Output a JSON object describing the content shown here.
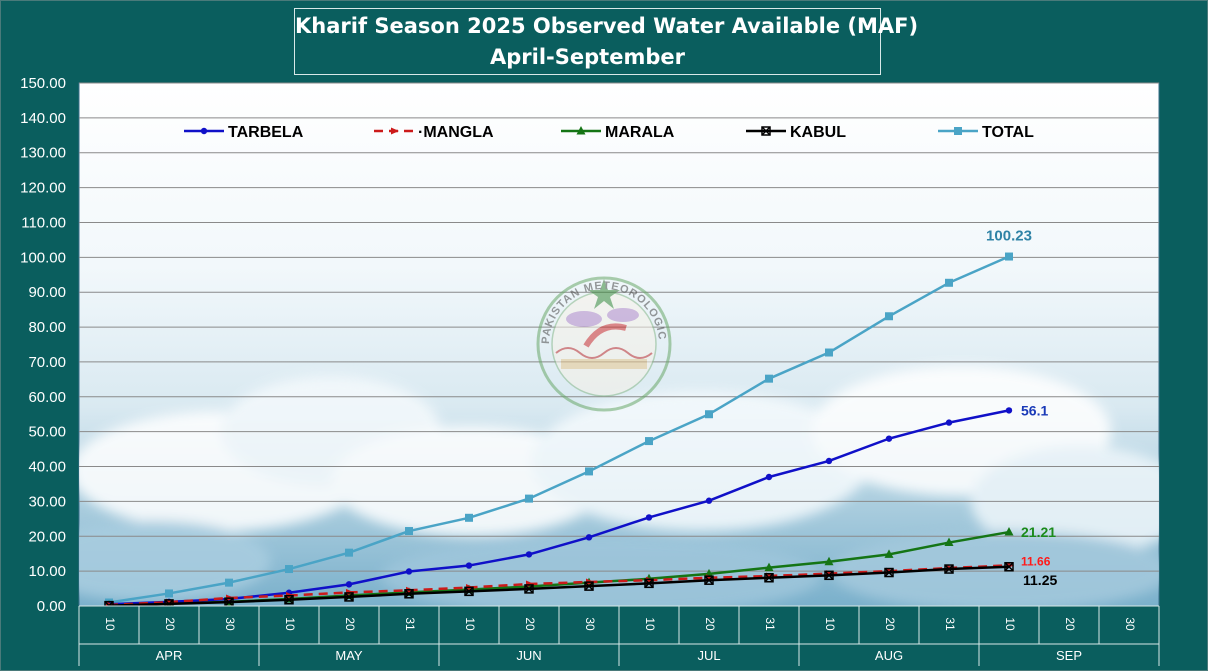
{
  "chart_data": {
    "type": "line",
    "title": "Kharif Season 2025 Observed Water Available (MAF)",
    "subtitle": "April-September",
    "ylim": [
      0,
      150
    ],
    "y_ticks": [
      "0.00",
      "10.00",
      "20.00",
      "30.00",
      "40.00",
      "50.00",
      "60.00",
      "70.00",
      "80.00",
      "90.00",
      "100.00",
      "110.00",
      "120.00",
      "130.00",
      "140.00",
      "150.00"
    ],
    "x_ticks": [
      "10",
      "20",
      "30",
      "10",
      "20",
      "31",
      "10",
      "20",
      "30",
      "10",
      "20",
      "31",
      "10",
      "20",
      "31",
      "10",
      "20",
      "30"
    ],
    "months": [
      "APR",
      "MAY",
      "JUN",
      "JUL",
      "AUG",
      "SEP"
    ],
    "grid": true,
    "legend_position": "top",
    "series": [
      {
        "name": "TARBELA",
        "color": "#1010c8",
        "marker": "circle",
        "dash": "",
        "values": [
          0.5,
          1.2,
          2.0,
          3.8,
          6.2,
          9.9,
          11.6,
          14.8,
          19.7,
          25.4,
          30.2,
          37.0,
          41.6,
          48.0,
          52.6,
          56.1
        ],
        "end_label": "56.1",
        "end_label_color": "#1a3ab8"
      },
      {
        "name": "·MANGLA",
        "color": "#cc1a1a",
        "marker": "arrow",
        "dash": "9,6",
        "values": [
          0.3,
          1.1,
          2.3,
          3.0,
          3.9,
          4.5,
          5.3,
          6.3,
          6.9,
          7.4,
          8.1,
          8.6,
          9.3,
          10.0,
          10.9,
          11.66
        ],
        "end_label": "11.66",
        "end_label_color": "#ff1a1a"
      },
      {
        "name": "MARALA",
        "color": "#157515",
        "marker": "triangle",
        "dash": "",
        "values": [
          0.2,
          0.7,
          1.2,
          2.0,
          3.0,
          3.9,
          4.7,
          5.6,
          6.7,
          7.8,
          9.2,
          11.0,
          12.7,
          14.8,
          18.2,
          21.21
        ],
        "end_label": "21.21",
        "end_label_color": "#1a8a1a"
      },
      {
        "name": "KABUL",
        "color": "#000000",
        "marker": "x-square",
        "dash": "",
        "values": [
          0.1,
          0.6,
          1.1,
          1.8,
          2.6,
          3.5,
          4.2,
          4.9,
          5.7,
          6.5,
          7.4,
          8.1,
          8.8,
          9.6,
          10.6,
          11.25
        ],
        "end_label": "11.25",
        "end_label_color": "#000000"
      },
      {
        "name": "TOTAL",
        "color": "#4aa4c6",
        "marker": "square",
        "dash": "",
        "values": [
          1.0,
          3.6,
          6.7,
          10.6,
          15.3,
          21.5,
          25.3,
          30.8,
          38.6,
          47.3,
          55.0,
          65.2,
          72.7,
          83.1,
          92.7,
          100.23
        ],
        "end_label": "100.23",
        "end_label_color": "#2f83a6"
      }
    ]
  },
  "logo": {
    "arc_text": "PAKISTAN METEOROLOGICAL DEPARTMENT"
  }
}
